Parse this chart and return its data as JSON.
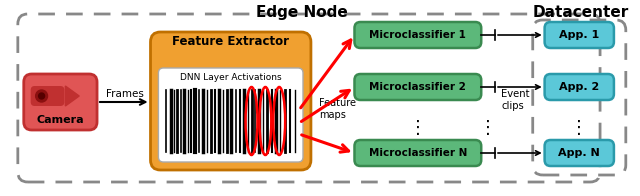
{
  "title_edge": "Edge Node",
  "title_dc": "Datacenter",
  "camera_label": "Camera",
  "camera_color": "#e05555",
  "camera_border": "#c03030",
  "frames_label": "Frames",
  "feature_extractor_label": "Feature Extractor",
  "feature_extractor_bg": "#f0a030",
  "feature_extractor_border": "#c07000",
  "dnn_label": "DNN Layer Activations",
  "feature_maps_label": "Feature\nmaps",
  "microclassifiers": [
    "Microclassifier 1",
    "Microclassifier 2",
    "Microclassifier N"
  ],
  "mc_color": "#5cb87a",
  "mc_border": "#3a8a50",
  "apps": [
    "App. 1",
    "App. 2",
    "App. N"
  ],
  "app_color": "#5bc8d8",
  "app_border": "#2a9aaa",
  "event_clips_label": "Event\nclips",
  "edge_box_color": "#888888",
  "dc_box_color": "#888888",
  "dots": "⋮"
}
